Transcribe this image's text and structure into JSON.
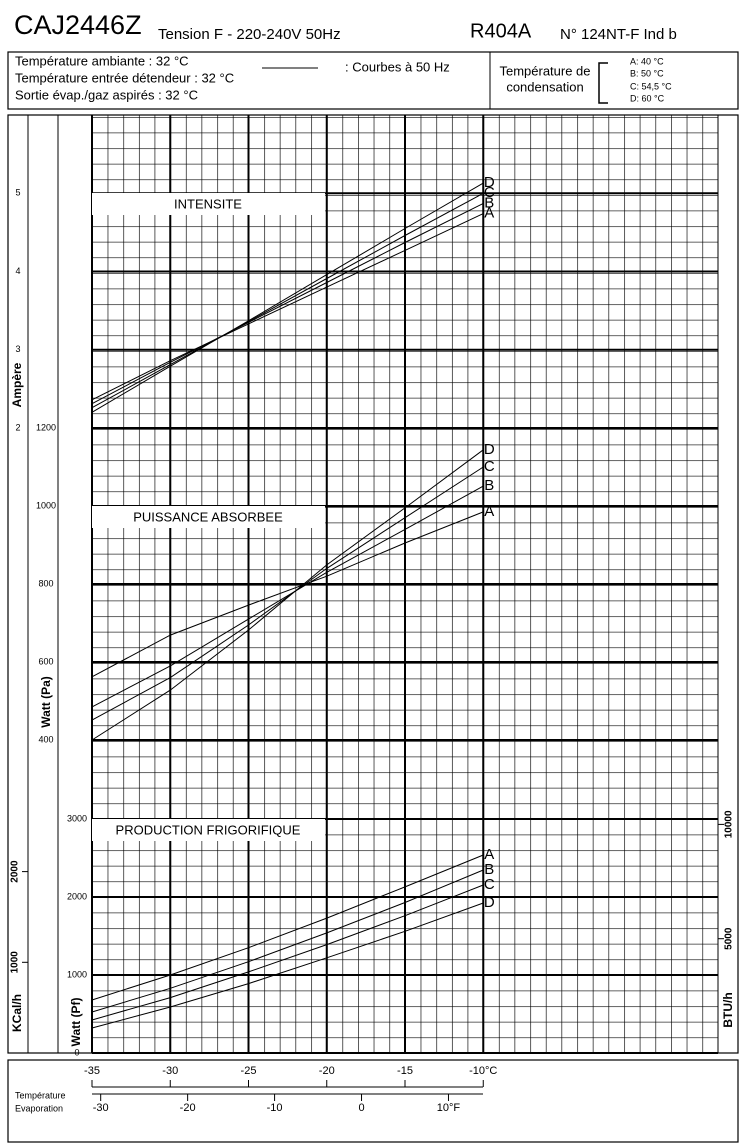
{
  "header": {
    "model": "CAJ2446Z",
    "voltage": "Tension F - 220-240V 50Hz",
    "refrigerant": "R404A",
    "reference": "N° 124NT-F Ind b",
    "conditions": [
      "Température ambiante : 32 °C",
      "Température entrée détendeur : 32 °C",
      "Sortie évap./gaz aspirés : 32 °C"
    ],
    "curve_note": ": Courbes à 50 Hz",
    "condensation_title": [
      "Température de",
      "condensation"
    ],
    "condensation_legend": [
      "A: 40 °C",
      "B: 50 °C",
      "C: 54,5 °C",
      "D: 60 °C"
    ]
  },
  "chart_data": [
    {
      "type": "line",
      "title": "INTENSITE",
      "ylabel": "Ampère",
      "x": [
        -35,
        -30,
        -25,
        -20,
        -15,
        -10
      ],
      "xlim": [
        -35,
        5
      ],
      "ylim": [
        2,
        6
      ],
      "yticks": [
        2,
        3,
        4,
        5
      ],
      "series": [
        {
          "name": "A",
          "color": "#000000",
          "values": [
            2.36,
            2.86,
            3.33,
            3.8,
            4.27,
            4.74
          ]
        },
        {
          "name": "B",
          "color": "#000000",
          "values": [
            2.31,
            2.84,
            3.35,
            3.86,
            4.37,
            4.87
          ]
        },
        {
          "name": "C",
          "color": "#000000",
          "values": [
            2.26,
            2.81,
            3.36,
            3.91,
            4.46,
            5.0
          ]
        },
        {
          "name": "D",
          "color": "#000000",
          "values": [
            2.2,
            2.79,
            3.37,
            3.96,
            4.55,
            5.13
          ]
        }
      ]
    },
    {
      "type": "line",
      "title": "PUISSANCE ABSORBEE",
      "ylabel": "Watt (Pa)",
      "x": [
        -35,
        -30,
        -25,
        -20,
        -15,
        -10
      ],
      "xlim": [
        -35,
        5
      ],
      "ylim": [
        400,
        1200
      ],
      "yticks": [
        400,
        600,
        800,
        1000,
        1200
      ],
      "series": [
        {
          "name": "A",
          "color": "#000000",
          "values": [
            562,
            669,
            746,
            820,
            905,
            985
          ]
        },
        {
          "name": "B",
          "color": "#000000",
          "values": [
            485,
            590,
            710,
            830,
            940,
            1051
          ]
        },
        {
          "name": "C",
          "color": "#000000",
          "values": [
            451,
            560,
            695,
            840,
            970,
            1100
          ]
        },
        {
          "name": "D",
          "color": "#000000",
          "values": [
            400,
            528,
            682,
            849,
            995,
            1144
          ]
        }
      ]
    },
    {
      "type": "line",
      "title": "PRODUCTION FRIGORIFIQUE",
      "ylabel": "Watt (Pf)",
      "x": [
        -35,
        -30,
        -25,
        -20,
        -15,
        -10
      ],
      "xlim": [
        -35,
        5
      ],
      "xticks": [
        -35,
        -30,
        -25,
        -20,
        -15,
        {
          "value": -10,
          "label": "-10°C"
        }
      ],
      "x2lim": [
        -31,
        41
      ],
      "x2ticks": [
        -30,
        -20,
        -10,
        0,
        {
          "value": 10,
          "label": "10°F"
        }
      ],
      "xlabel": [
        "Température",
        "Evaporation"
      ],
      "ylim": [
        0,
        3000
      ],
      "yticks": [
        0,
        1000,
        2000,
        3000
      ],
      "y2label": "KCal/h",
      "y2lim": [
        0,
        2580
      ],
      "y2ticks": [
        1000,
        2000
      ],
      "y3label": "BTU/h",
      "y3lim": [
        0,
        10236
      ],
      "y3ticks": [
        5000,
        10000
      ],
      "series": [
        {
          "name": "A",
          "color": "#000000",
          "values": [
            680,
            1000,
            1350,
            1730,
            2130,
            2538
          ]
        },
        {
          "name": "B",
          "color": "#000000",
          "values": [
            526,
            830,
            1170,
            1540,
            1930,
            2346
          ]
        },
        {
          "name": "C",
          "color": "#000000",
          "values": [
            423,
            710,
            1040,
            1390,
            1760,
            2154
          ]
        },
        {
          "name": "D",
          "color": "#000000",
          "values": [
            321,
            590,
            890,
            1220,
            1560,
            1923
          ]
        }
      ]
    }
  ]
}
